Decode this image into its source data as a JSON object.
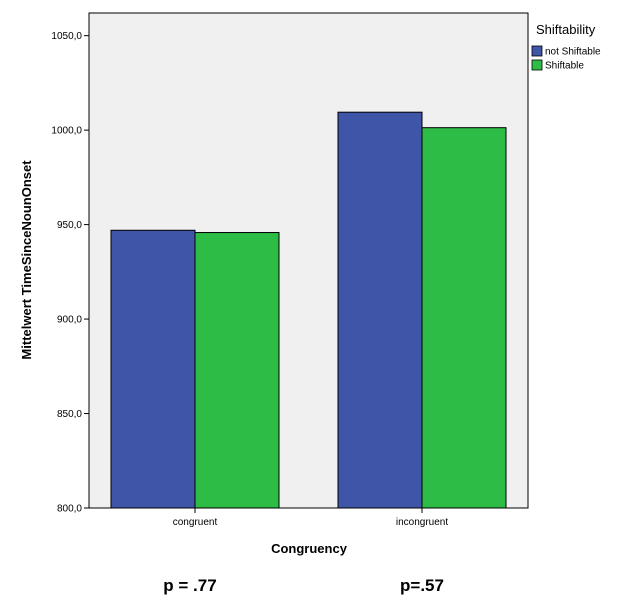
{
  "chart_data": {
    "type": "bar",
    "categories": [
      "congruent",
      "incongruent"
    ],
    "series": [
      {
        "name": "not Shiftable",
        "values": [
          947.0,
          1009.5
        ],
        "color": "#3f55a8"
      },
      {
        "name": "Shiftable",
        "values": [
          945.8,
          1001.3
        ],
        "color": "#2dbd47"
      }
    ],
    "xlabel": "Congruency",
    "ylabel": "Mittelwert TimeSinceNounOnset",
    "ylim": [
      800,
      1062
    ],
    "yticks": [
      800,
      850,
      900,
      950,
      1000,
      1050
    ],
    "ytick_labels": [
      "800,0",
      "850,0",
      "900,0",
      "950,0",
      "1000,0",
      "1050,0"
    ],
    "legend_title": "Shiftability",
    "legend_position": "top-right (outside plot)",
    "plot_background": "#f0f0f0",
    "grid": false,
    "annotations": [
      "p = .77",
      "p=.57"
    ]
  }
}
